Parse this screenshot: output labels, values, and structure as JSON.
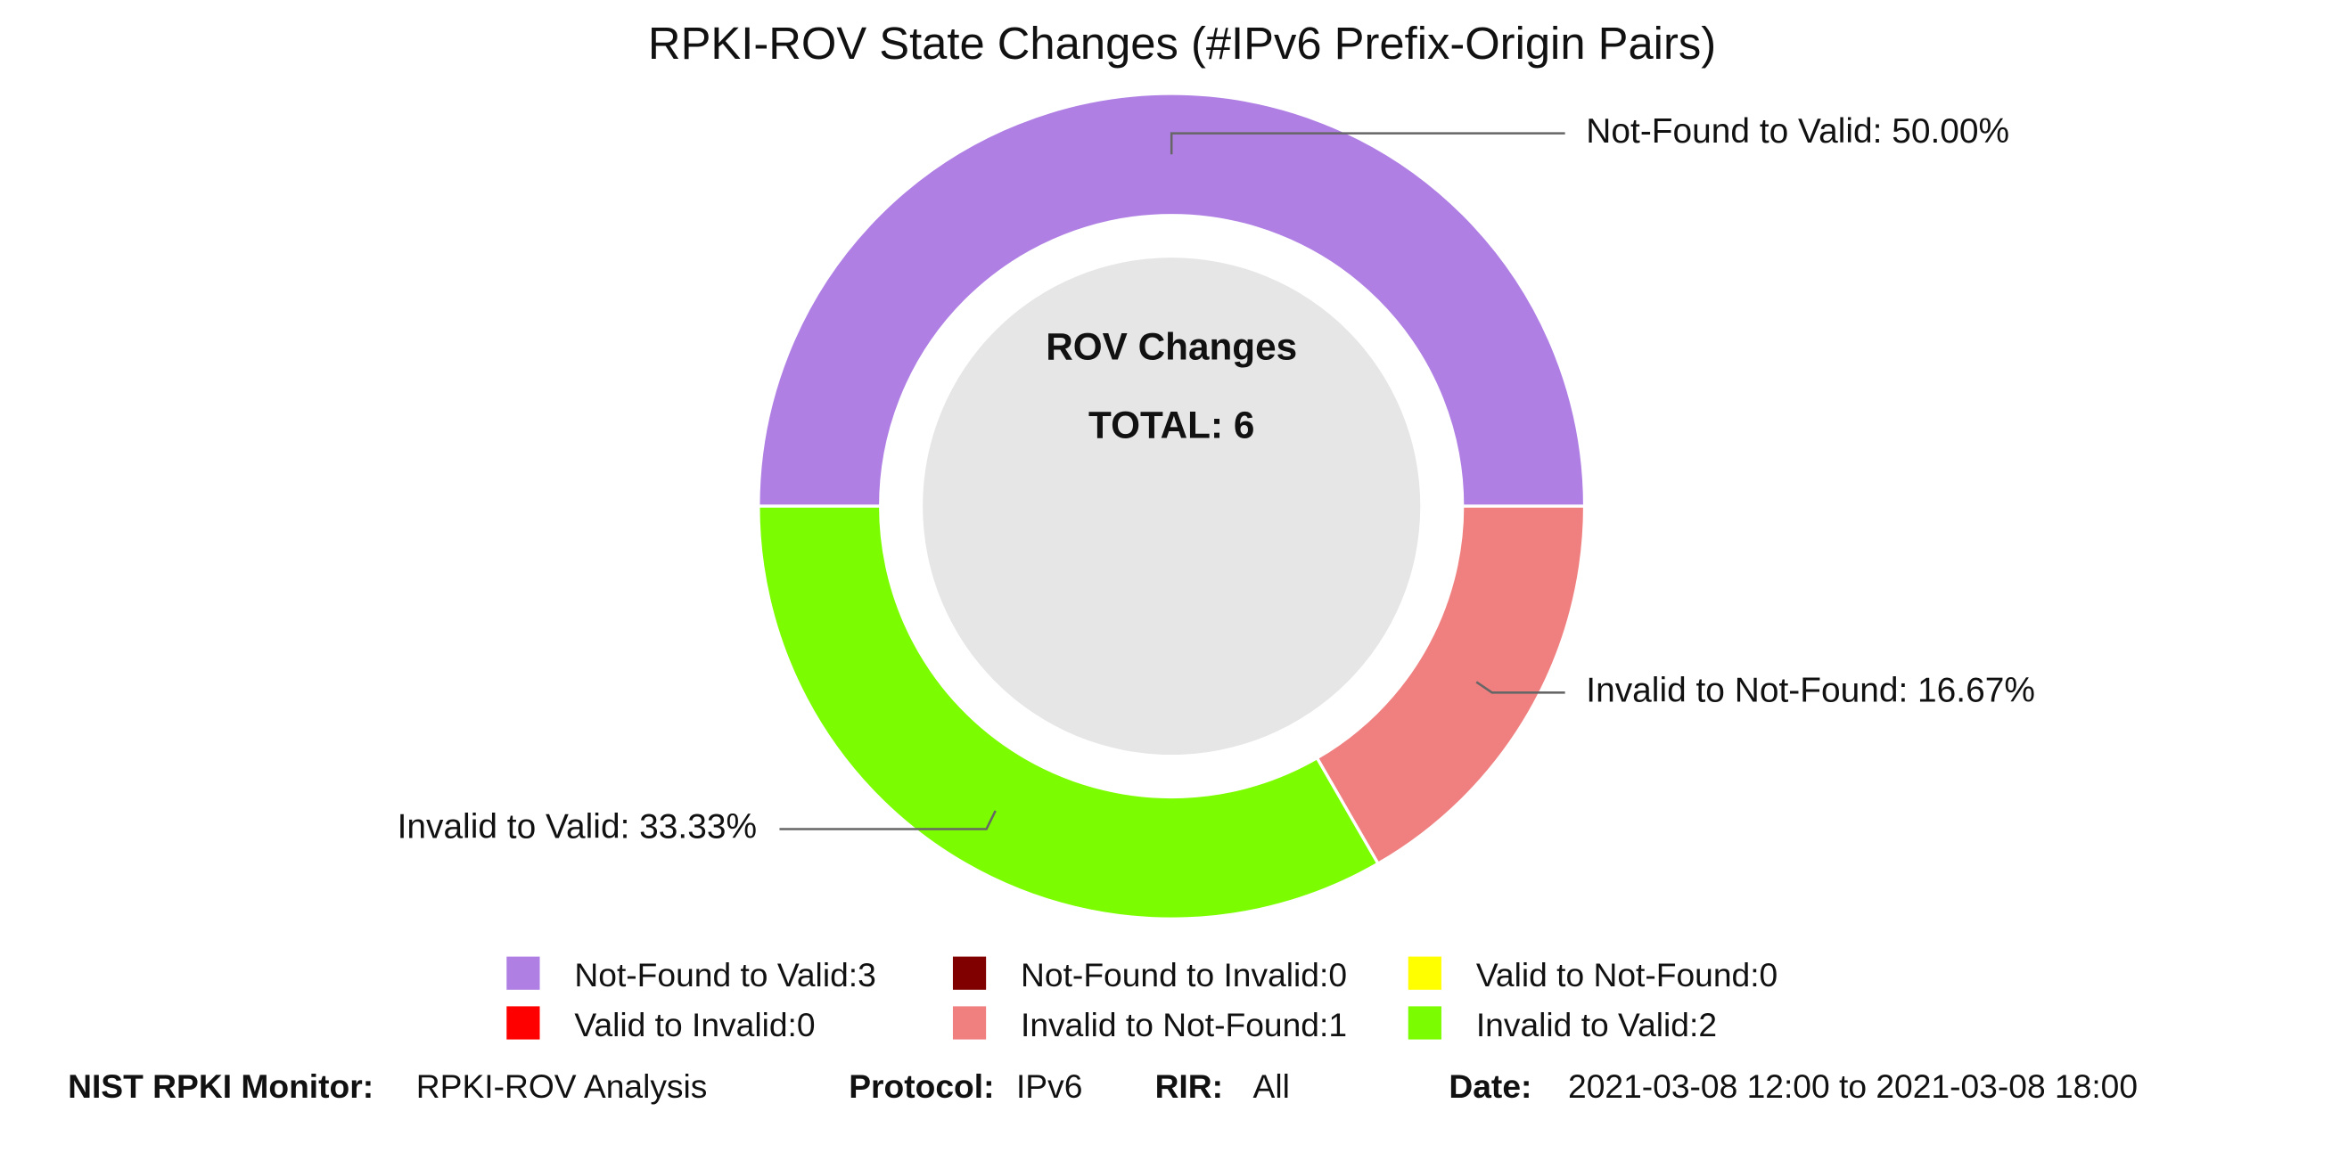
{
  "chart_data": {
    "type": "donut",
    "title": "RPKI-ROV State Changes (#IPv6 Prefix-Origin Pairs)",
    "center_title": "ROV Changes",
    "center_total": "TOTAL: 6",
    "categories": [
      "Not-Found to Valid",
      "Not-Found to Invalid",
      "Valid to Not-Found",
      "Valid to Invalid",
      "Invalid to Not-Found",
      "Invalid to Valid"
    ],
    "values": [
      3,
      0,
      0,
      0,
      1,
      2
    ],
    "value_labels": [
      "Not-Found to Valid: 50.00%",
      null,
      null,
      null,
      "Invalid to Not-Found: 16.67%",
      "Invalid to Valid: 33.33%"
    ],
    "legend_labels": [
      "Not-Found to Valid:3",
      "Not-Found to Invalid:0",
      "Valid to Not-Found:0",
      "Valid to Invalid:0",
      "Invalid to Not-Found:1",
      "Invalid to Valid:2"
    ],
    "colors": [
      "#af7fe4",
      "#800000",
      "#ffff00",
      "#ff0000",
      "#f08080",
      "#7cfc00"
    ]
  },
  "footer": {
    "monitor_label": "NIST RPKI Monitor:",
    "monitor_value": "RPKI-ROV Analysis",
    "protocol_label": "Protocol:",
    "protocol_value": "IPv6",
    "rir_label": "RIR:",
    "rir_value": "All",
    "date_label": "Date:",
    "date_value": "2021-03-08 12:00 to 2021-03-08 18:00"
  }
}
